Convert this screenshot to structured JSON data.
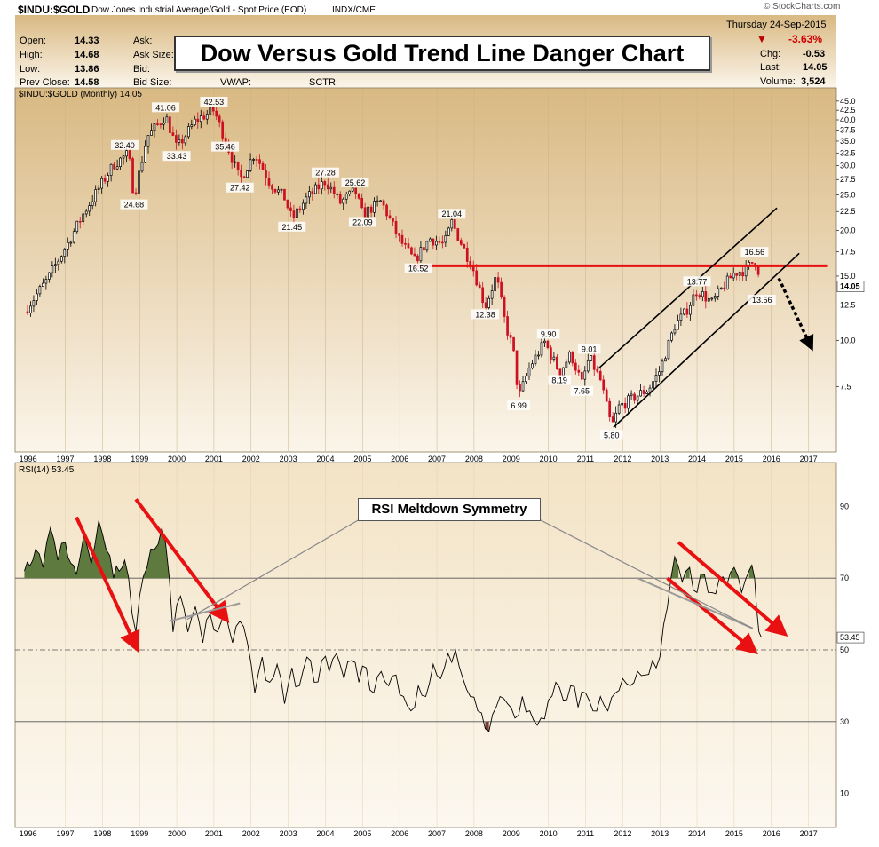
{
  "header": {
    "symbol": "$INDU:$GOLD",
    "description": "Dow Jones Industrial Average/Gold - Spot Price (EOD)",
    "exchange": "INDX/CME",
    "watermark": "© StockCharts.com",
    "date": "Thursday 24-Sep-2015",
    "change_pct": "-3.63%",
    "chg_label": "Chg:",
    "chg_value": "-0.53",
    "last_label": "Last:",
    "last_value": "14.05",
    "volume_label": "Volume:",
    "volume_value": "3,524",
    "fields": [
      {
        "label": "Open:",
        "value": "14.33"
      },
      {
        "label": "High:",
        "value": "14.68"
      },
      {
        "label": "Low:",
        "value": "13.86"
      },
      {
        "label": "Prev Close:",
        "value": "14.58"
      }
    ],
    "mid_labels": [
      "Ask:",
      "Ask Size:",
      "Bid:",
      "Bid Size:"
    ],
    "row4_labels": [
      "VWAP:",
      "SCTR:"
    ]
  },
  "banner_title": "Dow Versus Gold Trend Line Danger Chart",
  "rsi_callout": "RSI Meltdown Symmetry",
  "colors": {
    "bg_gradient_top": "#dcc08b",
    "bg_gradient_bottom": "#fbf6ec",
    "up": "#000000",
    "down": "#cc1122",
    "arrow": "#e81010",
    "resistance": "#e81010",
    "rsi_fill_high": "#5e7a3e",
    "rsi_fill_low": "#7a3c2e"
  },
  "chart_data": [
    {
      "type": "candlestick",
      "title": "$INDU:$GOLD (Monthly) 14.05",
      "last_price_label": "14.05",
      "x_ticks": [
        "1996",
        "1997",
        "1998",
        "1999",
        "2000",
        "2001",
        "2002",
        "2003",
        "2004",
        "2005",
        "2006",
        "2007",
        "2008",
        "2009",
        "2010",
        "2011",
        "2012",
        "2013",
        "2014",
        "2015",
        "2016",
        "2017"
      ],
      "y_scale": "log",
      "ylim": [
        5.0,
        46.5
      ],
      "y_ticks": [
        "45.0",
        "42.5",
        "40.0",
        "37.5",
        "35.0",
        "32.5",
        "30.0",
        "27.5",
        "25.0",
        "22.5",
        "20.0",
        "17.5",
        "15.0",
        "12.5",
        "10.0",
        "7.5"
      ],
      "series_path": [
        [
          1995.9,
          12.0
        ],
        [
          1996.5,
          14.6
        ],
        [
          1997.0,
          17.9
        ],
        [
          1997.5,
          22.3
        ],
        [
          1997.9,
          26.0
        ],
        [
          1998.3,
          30.2
        ],
        [
          1998.7,
          32.4
        ],
        [
          1998.85,
          24.68
        ],
        [
          1999.2,
          36.0
        ],
        [
          1999.7,
          41.06
        ],
        [
          2000.0,
          33.43
        ],
        [
          2000.5,
          39.8
        ],
        [
          2001.0,
          42.53
        ],
        [
          2001.3,
          35.46
        ],
        [
          2001.7,
          27.42
        ],
        [
          2002.1,
          32.5
        ],
        [
          2002.5,
          27.0
        ],
        [
          2002.9,
          24.5
        ],
        [
          2003.1,
          21.45
        ],
        [
          2003.5,
          24.5
        ],
        [
          2004.0,
          27.28
        ],
        [
          2004.4,
          23.8
        ],
        [
          2004.8,
          25.62
        ],
        [
          2005.0,
          22.09
        ],
        [
          2005.5,
          24.0
        ],
        [
          2006.0,
          18.8
        ],
        [
          2006.4,
          16.52
        ],
        [
          2006.8,
          19.0
        ],
        [
          2007.2,
          18.3
        ],
        [
          2007.4,
          21.04
        ],
        [
          2007.7,
          18.0
        ],
        [
          2007.95,
          16.0
        ],
        [
          2008.3,
          12.38
        ],
        [
          2008.6,
          15.0
        ],
        [
          2008.85,
          11.0
        ],
        [
          2009.05,
          9.5
        ],
        [
          2009.2,
          6.99
        ],
        [
          2009.5,
          8.5
        ],
        [
          2009.9,
          9.9
        ],
        [
          2010.3,
          8.19
        ],
        [
          2010.6,
          9.2
        ],
        [
          2010.9,
          7.65
        ],
        [
          2011.1,
          9.01
        ],
        [
          2011.4,
          7.8
        ],
        [
          2011.7,
          5.8
        ],
        [
          2011.9,
          6.6
        ],
        [
          2012.3,
          7.0
        ],
        [
          2012.7,
          7.4
        ],
        [
          2013.0,
          8.3
        ],
        [
          2013.4,
          11.0
        ],
        [
          2013.7,
          12.0
        ],
        [
          2014.0,
          13.77
        ],
        [
          2014.4,
          12.7
        ],
        [
          2014.7,
          14.0
        ],
        [
          2015.0,
          15.3
        ],
        [
          2015.3,
          15.6
        ],
        [
          2015.55,
          16.56
        ],
        [
          2015.65,
          15.56
        ],
        [
          2015.73,
          14.05
        ]
      ],
      "annotations": [
        {
          "x": 1998.6,
          "y": 32.4,
          "label": "32.40"
        },
        {
          "x": 1998.85,
          "y": 24.68,
          "label": "24.68"
        },
        {
          "x": 1999.7,
          "y": 41.06,
          "label": "41.06"
        },
        {
          "x": 2000.0,
          "y": 33.43,
          "label": "33.43"
        },
        {
          "x": 2001.0,
          "y": 42.53,
          "label": "42.53"
        },
        {
          "x": 2001.3,
          "y": 35.46,
          "label": "35.46"
        },
        {
          "x": 2001.7,
          "y": 27.42,
          "label": "27.42"
        },
        {
          "x": 2003.1,
          "y": 21.45,
          "label": "21.45"
        },
        {
          "x": 2004.0,
          "y": 27.28,
          "label": "27.28"
        },
        {
          "x": 2004.8,
          "y": 25.62,
          "label": "25.62"
        },
        {
          "x": 2005.0,
          "y": 22.09,
          "label": "22.09"
        },
        {
          "x": 2006.5,
          "y": 16.52,
          "label": "16.52"
        },
        {
          "x": 2007.4,
          "y": 21.04,
          "label": "21.04"
        },
        {
          "x": 2008.3,
          "y": 12.38,
          "label": "12.38"
        },
        {
          "x": 2009.2,
          "y": 6.99,
          "label": "6.99"
        },
        {
          "x": 2010.0,
          "y": 9.9,
          "label": "9.90"
        },
        {
          "x": 2010.3,
          "y": 8.19,
          "label": "8.19"
        },
        {
          "x": 2011.1,
          "y": 9.01,
          "label": "9.01"
        },
        {
          "x": 2010.9,
          "y": 7.65,
          "label": "7.65"
        },
        {
          "x": 2011.7,
          "y": 5.8,
          "label": "5.80"
        },
        {
          "x": 2014.0,
          "y": 13.77,
          "label": "13.77"
        },
        {
          "x": 2015.55,
          "y": 16.56,
          "label": "16.56"
        },
        {
          "x": 2015.75,
          "y": 13.56,
          "label": "13.56"
        }
      ],
      "resistance_line": {
        "y": 16.0,
        "x_start": 2006.3,
        "x_end": 2017.5
      },
      "channel_lines": [
        {
          "x1": 2011.35,
          "y1": 8.4,
          "x2": 2016.15,
          "y2": 23.0
        },
        {
          "x1": 2011.75,
          "y1": 5.8,
          "x2": 2016.75,
          "y2": 17.3
        }
      ],
      "arrows": [
        {
          "x1": 2016.2,
          "y1": 14.8,
          "x2": 2017.05,
          "y2": 9.7,
          "style": "dashed-black"
        }
      ]
    },
    {
      "type": "line",
      "title": "RSI(14) 53.45",
      "last_value_label": "53.45",
      "ylim": [
        1,
        100
      ],
      "y_ticks": [
        "90",
        "70",
        "50",
        "30",
        "10"
      ],
      "reference_lines": [
        70,
        50,
        30
      ],
      "x_ticks": [
        "1996",
        "1997",
        "1998",
        "1999",
        "2000",
        "2001",
        "2002",
        "2003",
        "2004",
        "2005",
        "2006",
        "2007",
        "2008",
        "2009",
        "2010",
        "2011",
        "2012",
        "2013",
        "2014",
        "2015",
        "2016",
        "2017"
      ],
      "series_path": [
        [
          1995.9,
          72
        ],
        [
          1996.2,
          78
        ],
        [
          1996.4,
          73
        ],
        [
          1996.6,
          84
        ],
        [
          1996.8,
          75
        ],
        [
          1997.0,
          80
        ],
        [
          1997.3,
          71
        ],
        [
          1997.5,
          82
        ],
        [
          1997.7,
          74
        ],
        [
          1997.9,
          86
        ],
        [
          1998.1,
          78
        ],
        [
          1998.3,
          70
        ],
        [
          1998.6,
          75
        ],
        [
          1998.8,
          60
        ],
        [
          1998.9,
          55
        ],
        [
          1999.0,
          65
        ],
        [
          1999.2,
          73
        ],
        [
          1999.4,
          78
        ],
        [
          1999.6,
          84
        ],
        [
          1999.8,
          70
        ],
        [
          1999.9,
          55
        ],
        [
          2000.1,
          65
        ],
        [
          2000.3,
          55
        ],
        [
          2000.5,
          62
        ],
        [
          2000.7,
          52
        ],
        [
          2000.9,
          60
        ],
        [
          2001.1,
          55
        ],
        [
          2001.3,
          61
        ],
        [
          2001.5,
          52
        ],
        [
          2001.7,
          58
        ],
        [
          2001.9,
          52
        ],
        [
          2002.1,
          38
        ],
        [
          2002.3,
          48
        ],
        [
          2002.5,
          41
        ],
        [
          2002.7,
          46
        ],
        [
          2002.9,
          35
        ],
        [
          2003.1,
          45
        ],
        [
          2003.3,
          40
        ],
        [
          2003.5,
          48
        ],
        [
          2003.7,
          41
        ],
        [
          2003.9,
          47
        ],
        [
          2004.1,
          44
        ],
        [
          2004.3,
          49
        ],
        [
          2004.5,
          42
        ],
        [
          2004.7,
          47
        ],
        [
          2004.9,
          41
        ],
        [
          2005.1,
          45
        ],
        [
          2005.3,
          38
        ],
        [
          2005.5,
          44
        ],
        [
          2005.7,
          40
        ],
        [
          2005.9,
          43
        ],
        [
          2006.1,
          37
        ],
        [
          2006.3,
          33
        ],
        [
          2006.5,
          40
        ],
        [
          2006.7,
          37
        ],
        [
          2006.9,
          46
        ],
        [
          2007.1,
          42
        ],
        [
          2007.3,
          49
        ],
        [
          2007.5,
          50
        ],
        [
          2007.7,
          42
        ],
        [
          2007.9,
          37
        ],
        [
          2008.1,
          33
        ],
        [
          2008.3,
          28
        ],
        [
          2008.5,
          32
        ],
        [
          2008.7,
          37
        ],
        [
          2008.9,
          35
        ],
        [
          2009.1,
          31
        ],
        [
          2009.3,
          37
        ],
        [
          2009.5,
          33
        ],
        [
          2009.7,
          29
        ],
        [
          2009.8,
          31
        ],
        [
          2010.0,
          36
        ],
        [
          2010.2,
          41
        ],
        [
          2010.4,
          36
        ],
        [
          2010.6,
          40
        ],
        [
          2010.8,
          34
        ],
        [
          2011.0,
          38
        ],
        [
          2011.2,
          33
        ],
        [
          2011.4,
          37
        ],
        [
          2011.6,
          33
        ],
        [
          2011.8,
          38
        ],
        [
          2012.0,
          42
        ],
        [
          2012.2,
          40
        ],
        [
          2012.4,
          44
        ],
        [
          2012.6,
          43
        ],
        [
          2012.8,
          47
        ],
        [
          2012.9,
          45
        ],
        [
          2013.1,
          57
        ],
        [
          2013.3,
          70
        ],
        [
          2013.4,
          76
        ],
        [
          2013.6,
          69
        ],
        [
          2013.8,
          73
        ],
        [
          2014.0,
          66
        ],
        [
          2014.2,
          71
        ],
        [
          2014.4,
          66
        ],
        [
          2014.6,
          70
        ],
        [
          2014.8,
          68
        ],
        [
          2015.0,
          73
        ],
        [
          2015.2,
          66
        ],
        [
          2015.4,
          72
        ],
        [
          2015.55,
          70
        ],
        [
          2015.6,
          62
        ],
        [
          2015.73,
          53.45
        ]
      ],
      "arrows": [
        {
          "x1": 1997.3,
          "y1": 87,
          "x2": 1998.9,
          "y2": 51,
          "style": "red"
        },
        {
          "x1": 1998.9,
          "y1": 92,
          "x2": 2001.3,
          "y2": 59,
          "style": "red"
        },
        {
          "x1": 2013.2,
          "y1": 70,
          "x2": 2015.5,
          "y2": 50,
          "style": "red"
        },
        {
          "x1": 2013.5,
          "y1": 80,
          "x2": 2016.3,
          "y2": 55,
          "style": "red"
        }
      ],
      "gray_lines": [
        {
          "x1": 1999.8,
          "y1": 58,
          "x2": 2001.7,
          "y2": 63
        },
        {
          "x1": 2012.4,
          "y1": 70,
          "x2": 2015.5,
          "y2": 56
        }
      ]
    }
  ]
}
